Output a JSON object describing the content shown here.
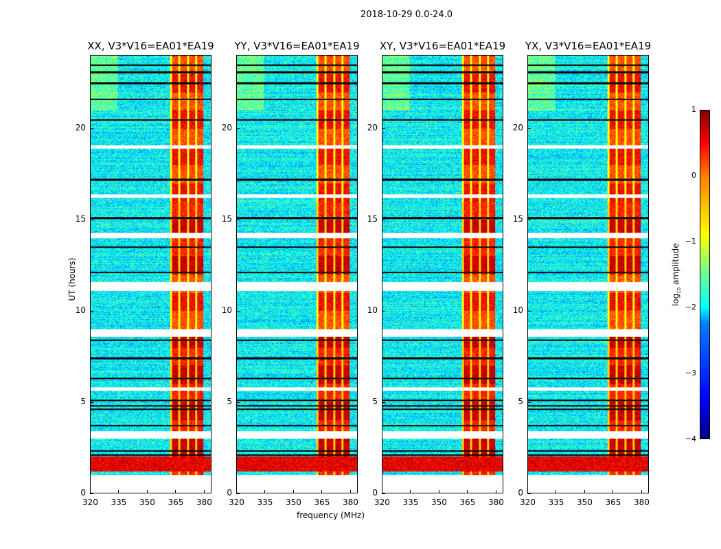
{
  "suptitle": "2018-10-29 0.0-24.0",
  "chart_data": {
    "type": "heatmap",
    "panels": [
      {
        "title": "XX, V3*V16=EA01*EA19"
      },
      {
        "title": "YY, V3*V16=EA01*EA19"
      },
      {
        "title": "XY, V3*V16=EA01*EA19"
      },
      {
        "title": "YX, V3*V16=EA01*EA19"
      }
    ],
    "xlabel": "frequency (MHz)",
    "ylabel": "UT (hours)",
    "xlim": [
      320,
      384
    ],
    "ylim": [
      0,
      24
    ],
    "xticks": [
      "320",
      "335",
      "350",
      "365",
      "380"
    ],
    "xtick_values": [
      320,
      335,
      350,
      365,
      380
    ],
    "yticks": [
      "0",
      "5",
      "10",
      "15",
      "20"
    ],
    "ytick_values": [
      0,
      5,
      10,
      15,
      20
    ],
    "colorbar": {
      "label_prefix": "log",
      "label_sub": "10",
      "label_suffix": " amplitude",
      "range": [
        -4,
        1
      ],
      "ticks": [
        "1",
        "0",
        "−1",
        "−2",
        "−3",
        "−4"
      ],
      "tick_values": [
        1,
        0,
        -1,
        -2,
        -3,
        -4
      ]
    },
    "data_start_hour": 1.0,
    "bright_band_mhz": [
      362,
      380
    ],
    "strong_rfi_hours": [
      1.2,
      2.0
    ],
    "gap_hours": [
      [
        3.0,
        3.4
      ],
      [
        5.6,
        5.8
      ],
      [
        8.6,
        9.0
      ],
      [
        11.1,
        11.6
      ],
      [
        14.0,
        14.3
      ],
      [
        16.2,
        16.4
      ],
      [
        18.9,
        19.1
      ]
    ],
    "black_line_hours": [
      2.1,
      2.3,
      3.7,
      4.6,
      4.8,
      5.1,
      6.3,
      7.4,
      8.4,
      12.1,
      13.5,
      15.1,
      17.2,
      20.5,
      21.6,
      22.5,
      23.1,
      23.5
    ]
  }
}
